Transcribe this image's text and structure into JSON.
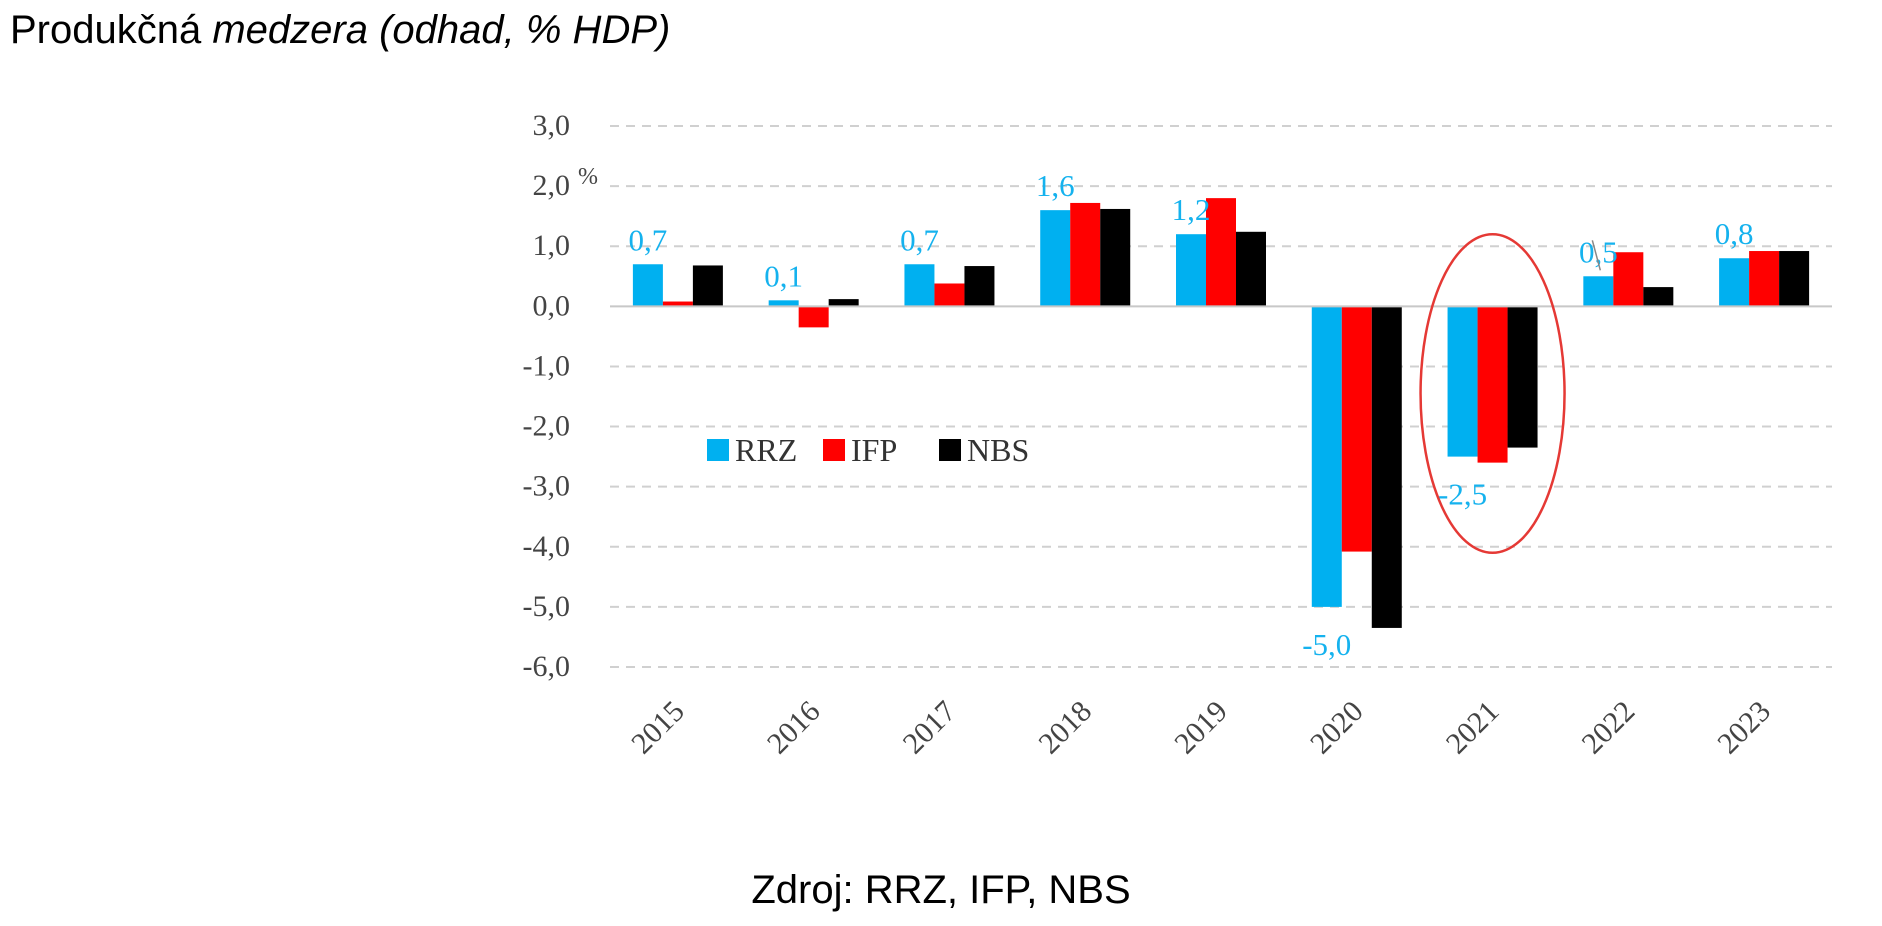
{
  "title": {
    "normal": "Produkčná",
    "italic": "medzera (odhad, % HDP)"
  },
  "source": "Zdroj: RRZ, IFP, NBS",
  "chart_data": {
    "type": "bar",
    "title": "Produkčná medzera (odhad, % HDP)",
    "unit_label": "%",
    "ylim": [
      -6,
      3
    ],
    "yticks": [
      3,
      2,
      1,
      0,
      -1,
      -2,
      -3,
      -4,
      -5,
      -6
    ],
    "ytick_labels": [
      "3,0",
      "2,0",
      "1,0",
      "0,0",
      "-1,0",
      "-2,0",
      "-3,0",
      "-4,0",
      "-5,0",
      "-6,0"
    ],
    "grid": true,
    "legend_position": "center-left",
    "categories": [
      "2015",
      "2016",
      "2017",
      "2018",
      "2019",
      "2020",
      "2021",
      "2022",
      "2023"
    ],
    "series": [
      {
        "name": "RRZ",
        "color": "#00b0f0",
        "values": [
          0.7,
          0.1,
          0.7,
          1.6,
          1.2,
          -5.0,
          -2.5,
          0.5,
          0.8
        ]
      },
      {
        "name": "IFP",
        "color": "#ff0000",
        "values": [
          0.08,
          -0.35,
          0.38,
          1.72,
          1.8,
          -4.08,
          -2.6,
          0.9,
          0.92
        ]
      },
      {
        "name": "NBS",
        "color": "#000000",
        "values": [
          0.68,
          0.12,
          0.67,
          1.62,
          1.24,
          -5.35,
          -2.35,
          0.32,
          0.92
        ]
      }
    ],
    "data_labels": [
      "0,7",
      "0,1",
      "0,7",
      "1,6",
      "1,2",
      "-5,0",
      "-2,5",
      "0,5",
      "0,8"
    ],
    "highlight_category": "2021"
  }
}
